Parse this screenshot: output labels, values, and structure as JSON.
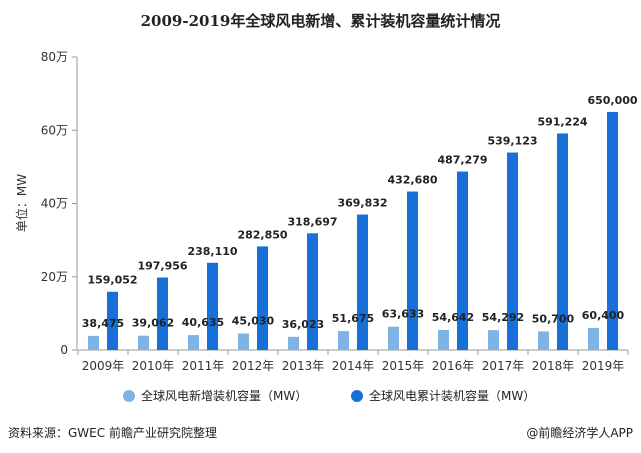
{
  "chart_data": {
    "type": "bar",
    "title": "2009-2019年全球风电新增、累计装机容量统计情况",
    "ylabel": "单位：MW",
    "xlabel": "",
    "ylim": [
      0,
      800000
    ],
    "ytick_values": [
      0,
      200000,
      400000,
      600000,
      800000
    ],
    "ytick_labels": [
      "0",
      "20万",
      "40万",
      "60万",
      "80万"
    ],
    "categories": [
      "2009年",
      "2010年",
      "2011年",
      "2012年",
      "2013年",
      "2014年",
      "2015年",
      "2016年",
      "2017年",
      "2018年",
      "2019年"
    ],
    "series": [
      {
        "name": "全球风电新增装机容量（MW）",
        "color": "#7fb2e5",
        "values": [
          38475,
          39062,
          40635,
          45030,
          36023,
          51675,
          63633,
          54642,
          54292,
          50700,
          60400
        ],
        "labels": [
          "38,475",
          "39,062",
          "40,635",
          "45,030",
          "36,023",
          "51,675",
          "63,633",
          "54,642",
          "54,292",
          "50,700",
          "60,400"
        ]
      },
      {
        "name": "全球风电累计装机容量（MW）",
        "color": "#1670d8",
        "values": [
          159052,
          197956,
          238110,
          282850,
          318697,
          369832,
          432680,
          487279,
          539123,
          591224,
          650000
        ],
        "labels": [
          "159,052",
          "197,956",
          "238,110",
          "282,850",
          "318,697",
          "369,832",
          "432,680",
          "487,279",
          "539,123",
          "591,224",
          "650,000"
        ]
      }
    ],
    "grid": false,
    "legend_position": "bottom"
  },
  "footer": {
    "source": "资料来源：GWEC 前瞻产业研究院整理",
    "credit": "@前瞻经济学人APP"
  }
}
